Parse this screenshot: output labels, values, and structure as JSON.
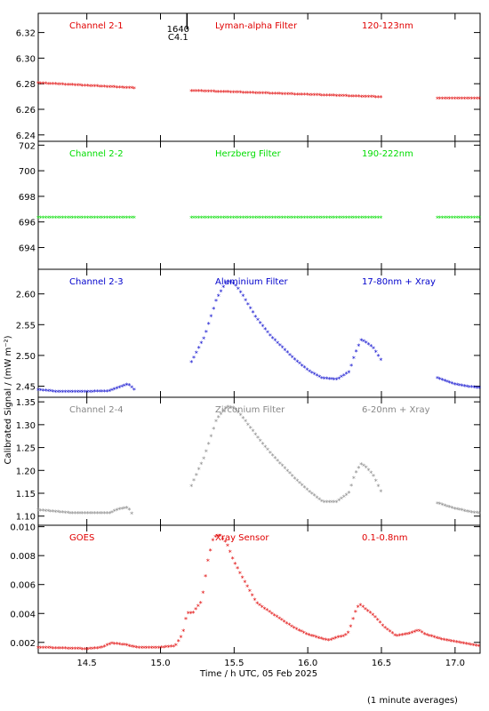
{
  "figure": {
    "ylabel": "Calibrated Signal / (mW m⁻²)",
    "xlabel": "Time / h UTC, 05 Feb 2025",
    "footnote": "(1 minute averages)",
    "event_marker": {
      "x": 15.18,
      "labels": [
        "1640",
        "C4.1"
      ]
    }
  },
  "chart_data": [
    {
      "type": "scatter",
      "name": "Channel 2-1",
      "labels": [
        "Channel 2-1",
        "Lyman-alpha Filter",
        "120-123nm"
      ],
      "color": "#e00000",
      "ylim": [
        6.235,
        6.335
      ],
      "yticks": [
        6.24,
        6.26,
        6.28,
        6.3,
        6.32
      ],
      "ytick_labels": [
        "6.24",
        "6.26",
        "6.28",
        "6.30",
        "6.32"
      ],
      "segments": [
        {
          "x": [
            14.17,
            14.83
          ],
          "y": [
            6.28,
            6.276
          ]
        },
        {
          "x": [
            15.21,
            16.5
          ],
          "y": [
            6.274,
            6.269
          ]
        },
        {
          "x": [
            16.88,
            17.17
          ],
          "y": [
            6.268,
            6.268
          ]
        }
      ]
    },
    {
      "type": "scatter",
      "name": "Channel 2-2",
      "labels": [
        "Channel 2-2",
        "Herzberg Filter",
        "190-222nm"
      ],
      "color": "#00dd00",
      "ylim": [
        692.3,
        702.3
      ],
      "yticks": [
        694,
        696,
        698,
        700,
        702
      ],
      "ytick_labels": [
        "694",
        "696",
        "698",
        "700",
        "702"
      ],
      "segments": [
        {
          "x": [
            14.17,
            14.83
          ],
          "y": [
            696.3,
            696.3
          ]
        },
        {
          "x": [
            15.21,
            16.5
          ],
          "y": [
            696.3,
            696.3
          ]
        },
        {
          "x": [
            16.88,
            17.17
          ],
          "y": [
            696.3,
            696.3
          ]
        }
      ]
    },
    {
      "type": "scatter",
      "name": "Channel 2-3",
      "labels": [
        "Channel 2-3",
        "Aluminium Filter",
        "17-80nm + Xray"
      ],
      "color": "#0000cc",
      "ylim": [
        2.432,
        2.64
      ],
      "yticks": [
        2.45,
        2.5,
        2.55,
        2.6
      ],
      "ytick_labels": [
        "2.45",
        "2.50",
        "2.55",
        "2.60"
      ],
      "segments": [
        {
          "x": [
            14.17,
            14.3,
            14.5,
            14.65,
            14.72,
            14.78,
            14.83
          ],
          "y": [
            2.443,
            2.44,
            2.44,
            2.441,
            2.447,
            2.452,
            2.442
          ]
        },
        {
          "x": [
            15.21,
            15.3,
            15.38,
            15.45,
            15.5,
            15.55,
            15.65,
            15.75,
            15.9,
            16.0,
            16.1,
            16.2,
            16.28,
            16.32,
            16.36,
            16.4,
            16.45,
            16.5
          ],
          "y": [
            2.488,
            2.53,
            2.59,
            2.62,
            2.616,
            2.6,
            2.56,
            2.53,
            2.495,
            2.475,
            2.462,
            2.46,
            2.472,
            2.5,
            2.524,
            2.52,
            2.51,
            2.49
          ]
        },
        {
          "x": [
            16.88,
            17.0,
            17.1,
            17.17
          ],
          "y": [
            2.462,
            2.452,
            2.448,
            2.446
          ]
        }
      ]
    },
    {
      "type": "scatter",
      "name": "Channel 2-4",
      "labels": [
        "Channel 2-4",
        "Zirconium Filter",
        "6-20nm + Xray"
      ],
      "color": "#888888",
      "ylim": [
        1.08,
        1.36
      ],
      "yticks": [
        1.1,
        1.15,
        1.2,
        1.25,
        1.3,
        1.35
      ],
      "ytick_labels": [
        "1.10",
        "1.15",
        "1.20",
        "1.25",
        "1.30",
        "1.35"
      ],
      "segments": [
        {
          "x": [
            14.17,
            14.4,
            14.65,
            14.72,
            14.78,
            14.82
          ],
          "y": [
            1.112,
            1.105,
            1.105,
            1.114,
            1.118,
            1.095
          ]
        },
        {
          "x": [
            15.21,
            15.3,
            15.38,
            15.45,
            15.5,
            15.55,
            15.65,
            15.75,
            15.9,
            16.0,
            16.1,
            16.2,
            16.28,
            16.32,
            16.36,
            16.4,
            16.45,
            16.5
          ],
          "y": [
            1.165,
            1.23,
            1.31,
            1.338,
            1.335,
            1.318,
            1.275,
            1.235,
            1.185,
            1.155,
            1.13,
            1.13,
            1.15,
            1.19,
            1.213,
            1.205,
            1.185,
            1.15
          ]
        },
        {
          "x": [
            16.88,
            17.0,
            17.1,
            17.17
          ],
          "y": [
            1.127,
            1.115,
            1.108,
            1.105
          ]
        }
      ]
    },
    {
      "type": "scatter",
      "name": "GOES",
      "labels": [
        "GOES",
        "Xray Sensor",
        "0.1-0.8nm"
      ],
      "color": "#e00000",
      "ylim": [
        0.00125,
        0.0101
      ],
      "yticks": [
        0.002,
        0.004,
        0.006,
        0.008,
        0.01
      ],
      "ytick_labels": [
        "0.002",
        "0.004",
        "0.006",
        "0.008",
        "0.010"
      ],
      "segments": [
        {
          "x": [
            14.17,
            14.5,
            14.6,
            14.67,
            14.75,
            14.85,
            15.0,
            15.1,
            15.15,
            15.18,
            15.22,
            15.28,
            15.32,
            15.36,
            15.4,
            15.45,
            15.5,
            15.58,
            15.65,
            15.75,
            15.9,
            16.0,
            16.1,
            16.15,
            16.2,
            16.25,
            16.28,
            16.32,
            16.35,
            16.4,
            16.45,
            16.52,
            16.6,
            16.7,
            16.75,
            16.8,
            16.9,
            17.0,
            17.17
          ],
          "y": [
            0.0016,
            0.0015,
            0.0016,
            0.0019,
            0.0018,
            0.0016,
            0.0016,
            0.0017,
            0.0025,
            0.004,
            0.004,
            0.0048,
            0.0075,
            0.0092,
            0.0094,
            0.0088,
            0.0075,
            0.006,
            0.0047,
            0.004,
            0.003,
            0.0025,
            0.0022,
            0.0021,
            0.0023,
            0.0024,
            0.0027,
            0.004,
            0.0046,
            0.0042,
            0.0038,
            0.003,
            0.0024,
            0.0026,
            0.0028,
            0.0025,
            0.0022,
            0.002,
            0.0017
          ]
        }
      ]
    }
  ],
  "xaxis": {
    "xlim": [
      14.17,
      17.17
    ],
    "ticks": [
      14.5,
      15.0,
      15.5,
      16.0,
      16.5,
      17.0
    ],
    "tick_labels": [
      "14.5",
      "15.0",
      "15.5",
      "16.0",
      "16.5",
      "17.0"
    ]
  }
}
